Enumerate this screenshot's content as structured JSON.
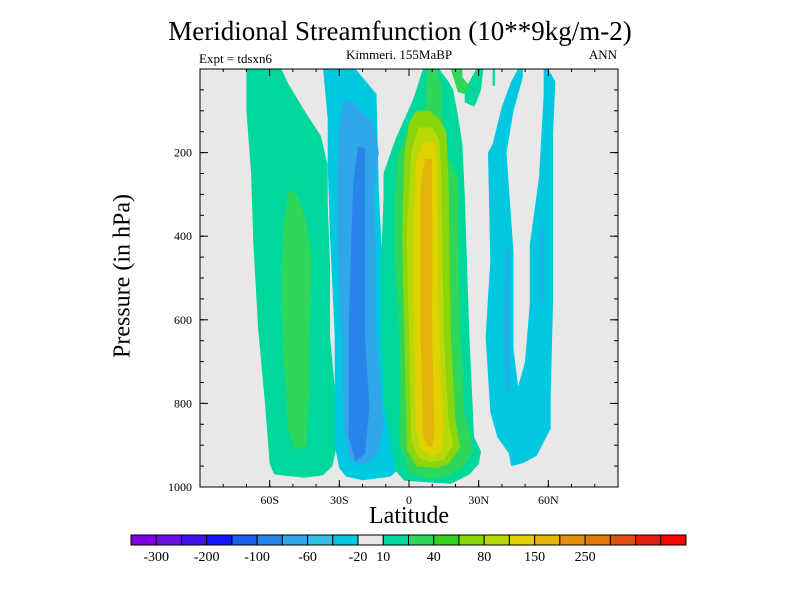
{
  "chart_data": {
    "type": "contour",
    "title": "Meridional Streamfunction (10**9kg/m-2)",
    "subtitle_left": "Expt = tdsxn6",
    "subtitle_center": "Kimmeri. 155MaBP",
    "subtitle_right": "ANN",
    "xlabel": "Latitude",
    "ylabel": "Pressure (in hPa)",
    "xlim": [
      -90,
      90
    ],
    "ylim": [
      1000,
      0
    ],
    "x_ticks": [
      {
        "value": -60,
        "label": "60S"
      },
      {
        "value": -30,
        "label": "30S"
      },
      {
        "value": 0,
        "label": "0"
      },
      {
        "value": 30,
        "label": "30N"
      },
      {
        "value": 60,
        "label": "60N"
      }
    ],
    "y_ticks": [
      {
        "value": 200,
        "label": "200"
      },
      {
        "value": 400,
        "label": "400"
      },
      {
        "value": 600,
        "label": "600"
      },
      {
        "value": 800,
        "label": "800"
      },
      {
        "value": 1000,
        "label": "1000"
      }
    ],
    "colorbar": {
      "colors": [
        "#8000e6",
        "#6a10e6",
        "#3f12ec",
        "#1414ff",
        "#1a5fe8",
        "#2883ea",
        "#2fa7e8",
        "#38bee2",
        "#00c8e0",
        "#e8e8e8",
        "#00d79b",
        "#2ed65a",
        "#36d01f",
        "#8ad60c",
        "#b8d80a",
        "#e0d200",
        "#e5b40b",
        "#e58f10",
        "#e5780a",
        "#e44d0f",
        "#e21e10",
        "#ff0000"
      ],
      "labels": [
        {
          "index": 1,
          "text": "-300"
        },
        {
          "index": 3,
          "text": "-200"
        },
        {
          "index": 5,
          "text": "-100"
        },
        {
          "index": 7,
          "text": "-60"
        },
        {
          "index": 9,
          "text": "-20"
        },
        {
          "index": 10,
          "text": "10"
        },
        {
          "index": 12,
          "text": "40"
        },
        {
          "index": 14,
          "text": "80"
        },
        {
          "index": 16,
          "text": "150"
        },
        {
          "index": 18,
          "text": "250"
        }
      ]
    },
    "background_color": "#e8e8e8",
    "regions": [
      {
        "name": "sh-outer-cell-10",
        "color": "#00d79b",
        "outline": [
          [
            -70,
            0
          ],
          [
            -55,
            0
          ],
          [
            -52,
            35
          ],
          [
            -45,
            100
          ],
          [
            -38,
            160
          ],
          [
            -35,
            230
          ],
          [
            -35,
            320
          ],
          [
            -34,
            470
          ],
          [
            -34,
            640
          ],
          [
            -32,
            760
          ],
          [
            -31,
            900
          ],
          [
            -33,
            950
          ],
          [
            -37,
            972
          ],
          [
            -45,
            978
          ],
          [
            -58,
            970
          ],
          [
            -60,
            945
          ],
          [
            -62,
            800
          ],
          [
            -65,
            620
          ],
          [
            -67,
            420
          ],
          [
            -68,
            250
          ],
          [
            -70,
            100
          ]
        ]
      },
      {
        "name": "sh-outer-cell-40",
        "color": "#2ed65a",
        "outline": [
          [
            -52,
            290
          ],
          [
            -48,
            300
          ],
          [
            -44,
            370
          ],
          [
            -42,
            450
          ],
          [
            -43,
            640
          ],
          [
            -43,
            760
          ],
          [
            -44,
            900
          ],
          [
            -49,
            912
          ],
          [
            -52,
            860
          ],
          [
            -54,
            700
          ],
          [
            -55,
            520
          ],
          [
            -54,
            380
          ]
        ]
      },
      {
        "name": "sh-hadley-cell-m20",
        "color": "#00c8e0",
        "outline": [
          [
            -37,
            0
          ],
          [
            -23,
            0
          ],
          [
            -20,
            20
          ],
          [
            -14,
            60
          ],
          [
            -13,
            290
          ],
          [
            -10,
            640
          ],
          [
            -8,
            850
          ],
          [
            -5,
            880
          ],
          [
            -4,
            955
          ],
          [
            -8,
            975
          ],
          [
            -20,
            984
          ],
          [
            -27,
            975
          ],
          [
            -30,
            955
          ],
          [
            -32,
            900
          ],
          [
            -32,
            640
          ],
          [
            -34,
            400
          ],
          [
            -35,
            230
          ],
          [
            -35,
            120
          ]
        ]
      },
      {
        "name": "sh-hadley-cell-m60",
        "color": "#2fa7e8",
        "outline": [
          [
            -28,
            75
          ],
          [
            -24,
            80
          ],
          [
            -19,
            110
          ],
          [
            -15,
            130
          ],
          [
            -13,
            200
          ],
          [
            -15,
            280
          ],
          [
            -14,
            640
          ],
          [
            -11,
            850
          ],
          [
            -13,
            915
          ],
          [
            -18,
            945
          ],
          [
            -22,
            945
          ],
          [
            -26,
            930
          ],
          [
            -28,
            850
          ],
          [
            -29,
            640
          ],
          [
            -31,
            420
          ],
          [
            -31,
            250
          ],
          [
            -30,
            130
          ]
        ]
      },
      {
        "name": "sh-hadley-cell-m100",
        "color": "#2883ea",
        "outline": [
          [
            -22,
            185
          ],
          [
            -19,
            190
          ],
          [
            -19,
            640
          ],
          [
            -17,
            810
          ],
          [
            -19,
            920
          ],
          [
            -23,
            940
          ],
          [
            -26,
            880
          ],
          [
            -26,
            640
          ],
          [
            -25,
            430
          ],
          [
            -24,
            270
          ]
        ]
      },
      {
        "name": "nh-hadley-cell-10",
        "color": "#00d79b",
        "outline": [
          [
            6,
            0
          ],
          [
            13,
            0
          ],
          [
            17,
            30
          ],
          [
            19,
            50
          ],
          [
            21,
            110
          ],
          [
            23,
            180
          ],
          [
            24,
            300
          ],
          [
            26,
            640
          ],
          [
            28,
            880
          ],
          [
            31,
            915
          ],
          [
            30,
            945
          ],
          [
            26,
            970
          ],
          [
            18,
            992
          ],
          [
            -2,
            985
          ],
          [
            -6,
            960
          ],
          [
            -8,
            880
          ],
          [
            -11,
            800
          ],
          [
            -12,
            640
          ],
          [
            -12,
            460
          ],
          [
            -11,
            310
          ],
          [
            -11,
            250
          ],
          [
            -6,
            170
          ],
          [
            2,
            70
          ]
        ]
      },
      {
        "name": "nh-hadley-cell-40",
        "color": "#2ed65a",
        "outline": [
          [
            8,
            0
          ],
          [
            12,
            0
          ],
          [
            14,
            40
          ],
          [
            14,
            100
          ],
          [
            16,
            200
          ],
          [
            21,
            260
          ],
          [
            22,
            640
          ],
          [
            24,
            830
          ],
          [
            27,
            880
          ],
          [
            27,
            920
          ],
          [
            23,
            955
          ],
          [
            16,
            975
          ],
          [
            8,
            980
          ],
          [
            0,
            965
          ],
          [
            -4,
            900
          ],
          [
            -4,
            640
          ],
          [
            -6,
            460
          ],
          [
            -6,
            310
          ],
          [
            -5,
            210
          ],
          [
            -2,
            165
          ],
          [
            4,
            130
          ],
          [
            7,
            90
          ]
        ]
      },
      {
        "name": "nh-hadley-cell-80",
        "color": "#8ad60c",
        "outline": [
          [
            3,
            100
          ],
          [
            9,
            100
          ],
          [
            13,
            120
          ],
          [
            16,
            150
          ],
          [
            17,
            260
          ],
          [
            18,
            640
          ],
          [
            20,
            840
          ],
          [
            22,
            905
          ],
          [
            17,
            945
          ],
          [
            12,
            955
          ],
          [
            3,
            950
          ],
          [
            -1,
            910
          ],
          [
            -2,
            640
          ],
          [
            -3,
            400
          ],
          [
            -2,
            200
          ],
          [
            0,
            130
          ]
        ]
      },
      {
        "name": "nh-hadley-cell-120",
        "color": "#b8d80a",
        "outline": [
          [
            4,
            140
          ],
          [
            10,
            140
          ],
          [
            13,
            170
          ],
          [
            14,
            260
          ],
          [
            15,
            640
          ],
          [
            17,
            840
          ],
          [
            19,
            900
          ],
          [
            15,
            935
          ],
          [
            9,
            940
          ],
          [
            4,
            930
          ],
          [
            1,
            890
          ],
          [
            0,
            640
          ],
          [
            -1,
            400
          ],
          [
            1,
            200
          ]
        ]
      },
      {
        "name": "nh-hadley-cell-150",
        "color": "#e0d200",
        "outline": [
          [
            6,
            175
          ],
          [
            11,
            175
          ],
          [
            12,
            220
          ],
          [
            13,
            640
          ],
          [
            15,
            860
          ],
          [
            14,
            915
          ],
          [
            10,
            925
          ],
          [
            5,
            910
          ],
          [
            3,
            860
          ],
          [
            2,
            640
          ],
          [
            2,
            360
          ],
          [
            3,
            220
          ]
        ]
      },
      {
        "name": "nh-hadley-cell-200",
        "color": "#e5b40b",
        "outline": [
          [
            7,
            215
          ],
          [
            10,
            215
          ],
          [
            10,
            640
          ],
          [
            11,
            870
          ],
          [
            10,
            905
          ],
          [
            8,
            902
          ],
          [
            6,
            880
          ],
          [
            5,
            640
          ],
          [
            5,
            380
          ],
          [
            5,
            290
          ],
          [
            6,
            240
          ]
        ]
      },
      {
        "name": "nh-ferrel-cell-m20",
        "color": "#00c8e0",
        "outline": [
          [
            47,
            0
          ],
          [
            49,
            0
          ],
          [
            49,
            20
          ],
          [
            45,
            100
          ],
          [
            42,
            200
          ],
          [
            45,
            440
          ],
          [
            45,
            670
          ],
          [
            47,
            760
          ],
          [
            50,
            700
          ],
          [
            52,
            560
          ],
          [
            52,
            420
          ],
          [
            53,
            380
          ],
          [
            56,
            260
          ],
          [
            58,
            60
          ],
          [
            58,
            0
          ],
          [
            60,
            0
          ],
          [
            63,
            30
          ],
          [
            62,
            160
          ],
          [
            62,
            260
          ],
          [
            62,
            560
          ],
          [
            61,
            780
          ],
          [
            61,
            860
          ],
          [
            55,
            925
          ],
          [
            49,
            943
          ],
          [
            44,
            950
          ],
          [
            43,
            920
          ],
          [
            38,
            880
          ],
          [
            35,
            820
          ],
          [
            33,
            640
          ],
          [
            35,
            460
          ],
          [
            34,
            200
          ],
          [
            36,
            180
          ],
          [
            40,
            90
          ],
          [
            44,
            30
          ]
        ]
      },
      {
        "name": "nh-ferrel-cell-m60-a",
        "color": "#2fa7e8",
        "outline": [
          [
            42,
            420
          ],
          [
            43,
            420
          ],
          [
            43,
            640
          ],
          [
            43,
            770
          ],
          [
            42,
            770
          ],
          [
            41,
            640
          ]
        ]
      },
      {
        "name": "nh-ferrel-cell-m60-b",
        "color": "#2fa7e8",
        "outline": [
          [
            57,
            380
          ],
          [
            58,
            380
          ],
          [
            58,
            560
          ],
          [
            57,
            560
          ]
        ]
      },
      {
        "name": "nh-upper-cell-10",
        "color": "#00d79b",
        "outline": [
          [
            29,
            0
          ],
          [
            32,
            0
          ],
          [
            31,
            50
          ],
          [
            29,
            80
          ],
          [
            28,
            90
          ],
          [
            24,
            80
          ],
          [
            24,
            50
          ]
        ]
      },
      {
        "name": "nh-upper-cell-40",
        "color": "#2ed65a",
        "outline": [
          [
            18,
            0
          ],
          [
            23,
            0
          ],
          [
            23,
            20
          ],
          [
            26,
            40
          ],
          [
            24,
            60
          ],
          [
            21,
            55
          ]
        ]
      },
      {
        "name": "nh-upper-cell-10b",
        "color": "#00d79b",
        "outline": [
          [
            36,
            0
          ],
          [
            37,
            0
          ],
          [
            37,
            40
          ],
          [
            36,
            40
          ]
        ]
      }
    ]
  }
}
